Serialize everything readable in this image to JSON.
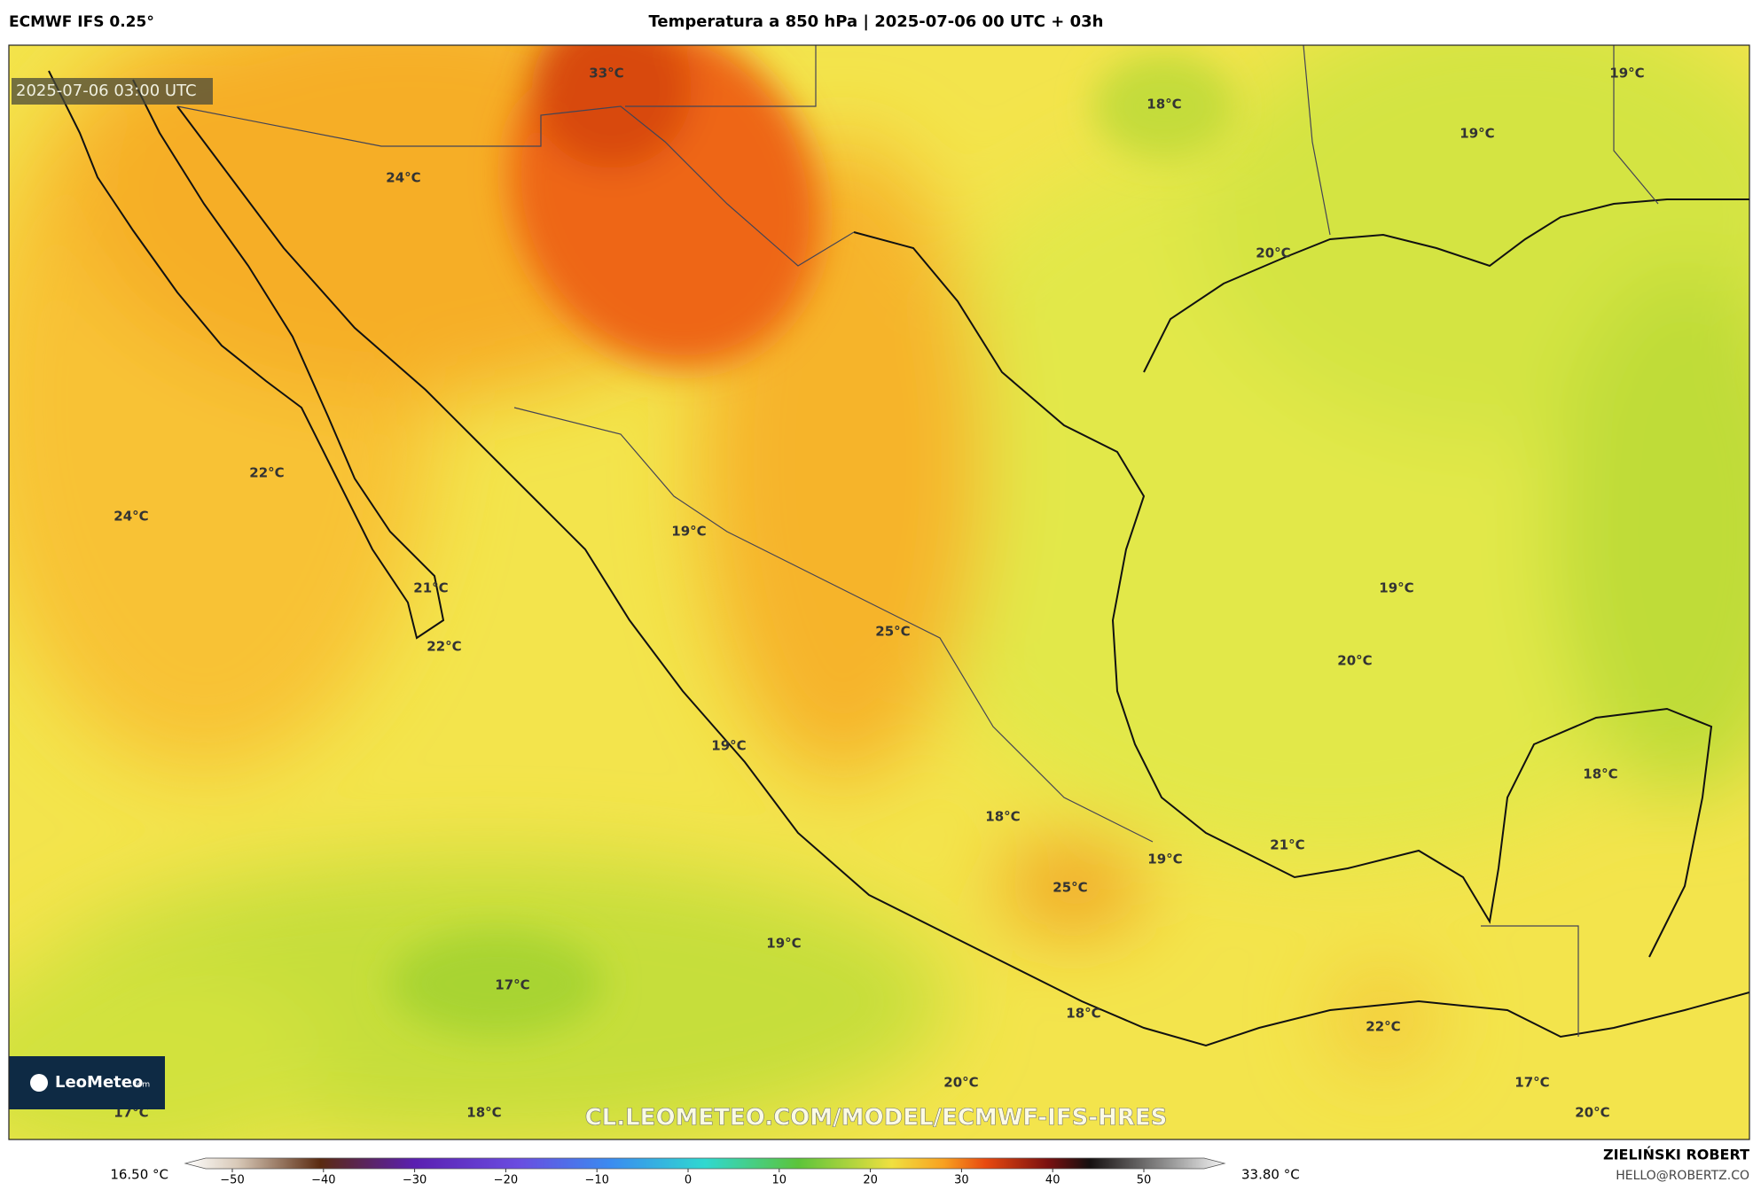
{
  "header": {
    "model": "ECMWF IFS 0.25°",
    "title": "Temperatura a 850 hPa | 2025-07-06 00 UTC + 03h"
  },
  "map": {
    "timestamp": "2025-07-06 03:00 UTC",
    "labels": [
      "33°C",
      "18°C",
      "19°C",
      "19°C",
      "24°C",
      "20°C",
      "22°C",
      "24°C",
      "19°C",
      "19°C",
      "21°C",
      "22°C",
      "25°C",
      "20°C",
      "19°C",
      "18°C",
      "18°C",
      "21°C",
      "19°C",
      "25°C",
      "19°C",
      "17°C",
      "18°C",
      "22°C",
      "20°C",
      "17°C",
      "17°C",
      "18°C",
      "20°C"
    ],
    "logo": "LeoMeteo",
    "logo_suffix": ".com",
    "watermark": "CL.LEOMETEO.COM/MODEL/ECMWF-IFS-HRES"
  },
  "colorbar": {
    "min_label": "16.50 °C",
    "max_label": "33.80 °C",
    "ticks": [
      "−50",
      "−40",
      "−30",
      "−20",
      "−10",
      "0",
      "10",
      "20",
      "30",
      "40",
      "50"
    ]
  },
  "footer": {
    "author": "ZIELIŃSKI ROBERT",
    "email": "HELLO@ROBERTZ.CO"
  }
}
